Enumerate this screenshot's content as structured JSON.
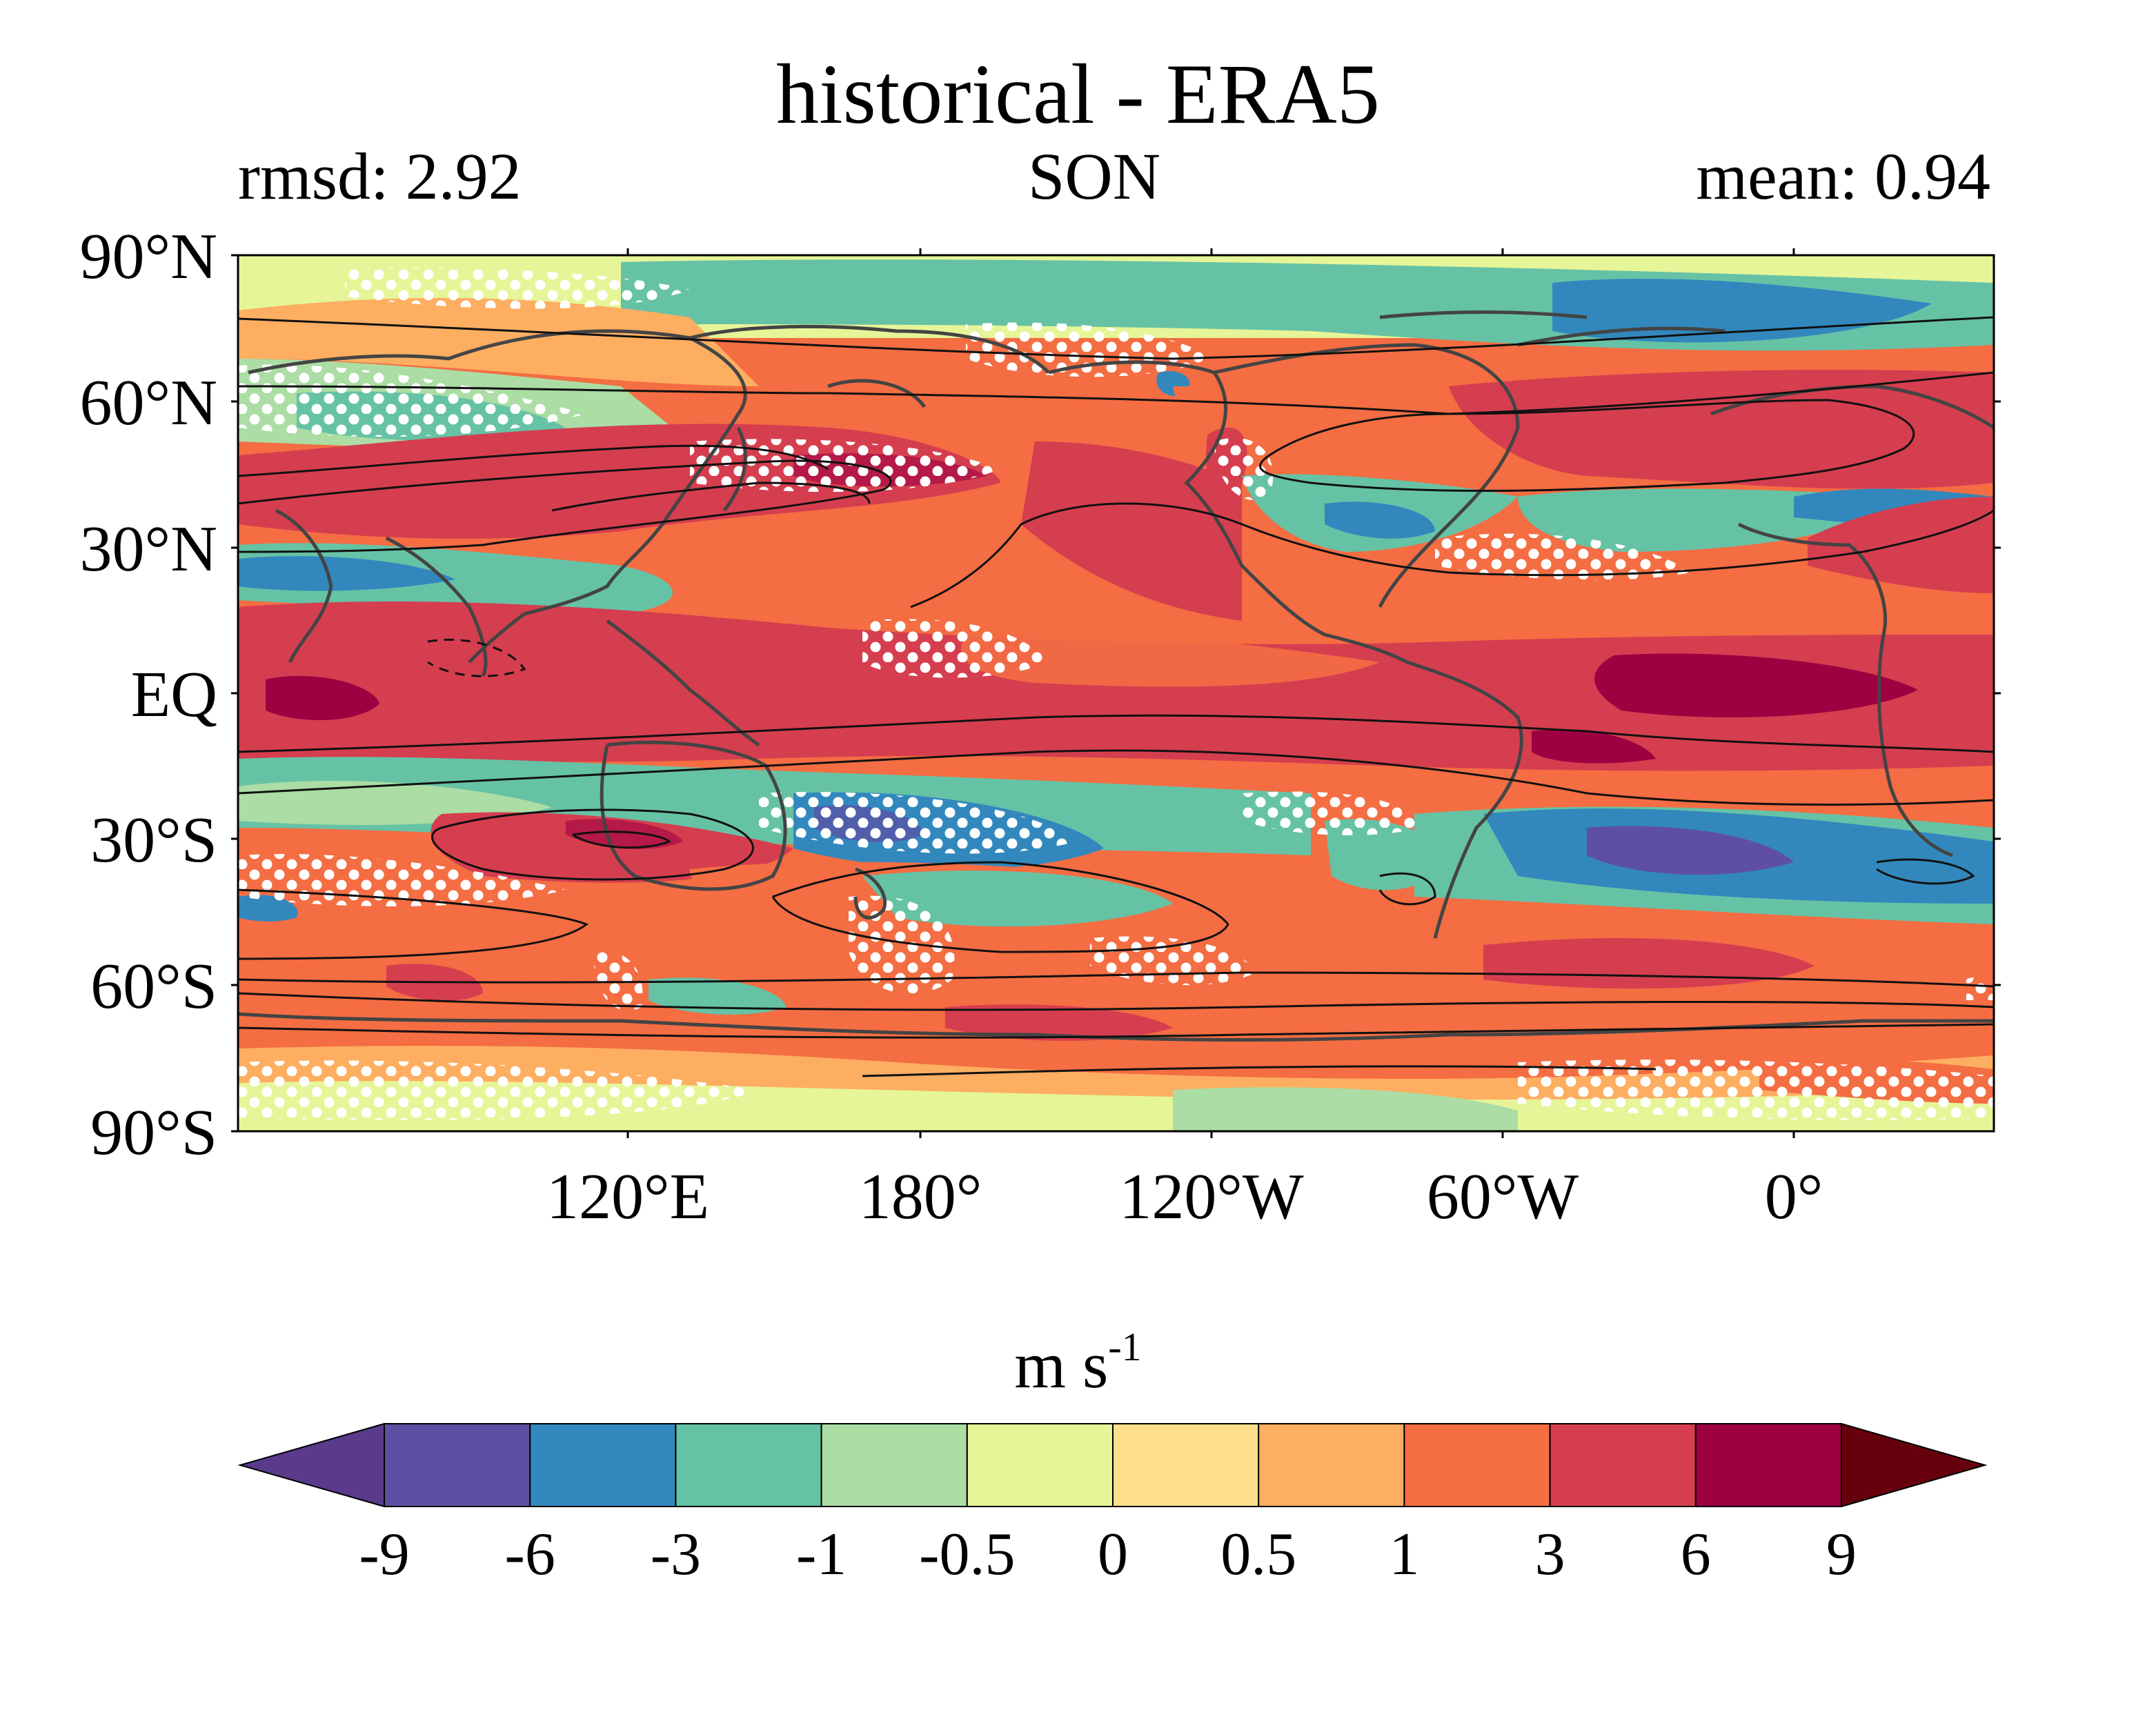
{
  "header": {
    "title": "historical - ERA5",
    "rmsd": "rmsd: 2.92",
    "season": "SON",
    "mean": "mean: 0.94"
  },
  "axes": {
    "y_ticks": [
      "90°N",
      "60°N",
      "30°N",
      "EQ",
      "30°S",
      "60°S",
      "90°S"
    ],
    "x_ticks": [
      "120°E",
      "180°",
      "120°W",
      "60°W",
      "0°"
    ]
  },
  "colorbar": {
    "unit_base": "m s",
    "unit_exp": "-1",
    "ticks": [
      "-9",
      "-6",
      "-3",
      "-1",
      "-0.5",
      "0",
      "0.5",
      "1",
      "3",
      "6",
      "9"
    ],
    "colors": [
      "#5e4fa2",
      "#3288bd",
      "#66c2a5",
      "#abdda4",
      "#e6f598",
      "#fee08b",
      "#fdae61",
      "#f46d43",
      "#d53e4f",
      "#9e0142"
    ],
    "under_color": "#5b3a8c",
    "over_color": "#67000d"
  }
}
